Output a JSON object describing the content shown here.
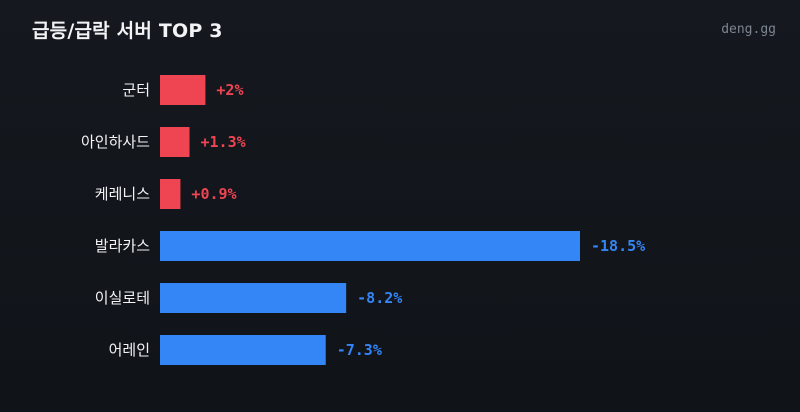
{
  "header": {
    "title": "급등/급락 서버 TOP 3",
    "brand": "deng.gg"
  },
  "colors": {
    "positive": "#ef4452",
    "negative": "#3485f6",
    "text": "#f1f3f5",
    "muted": "#7c8591"
  },
  "chart_data": {
    "type": "bar",
    "orientation": "horizontal",
    "title": "급등/급락 서버 TOP 3",
    "categories": [
      "군터",
      "아인하사드",
      "케레니스",
      "발라카스",
      "이실로테",
      "어레인"
    ],
    "values": [
      2,
      1.3,
      0.9,
      -18.5,
      -8.2,
      -7.3
    ],
    "value_labels": [
      "+2%",
      "+1.3%",
      "+0.9%",
      "-18.5%",
      "-8.2%",
      "-7.3%"
    ],
    "unit": "%",
    "bar_length": "absolute value",
    "grid": false,
    "legend": "none"
  }
}
